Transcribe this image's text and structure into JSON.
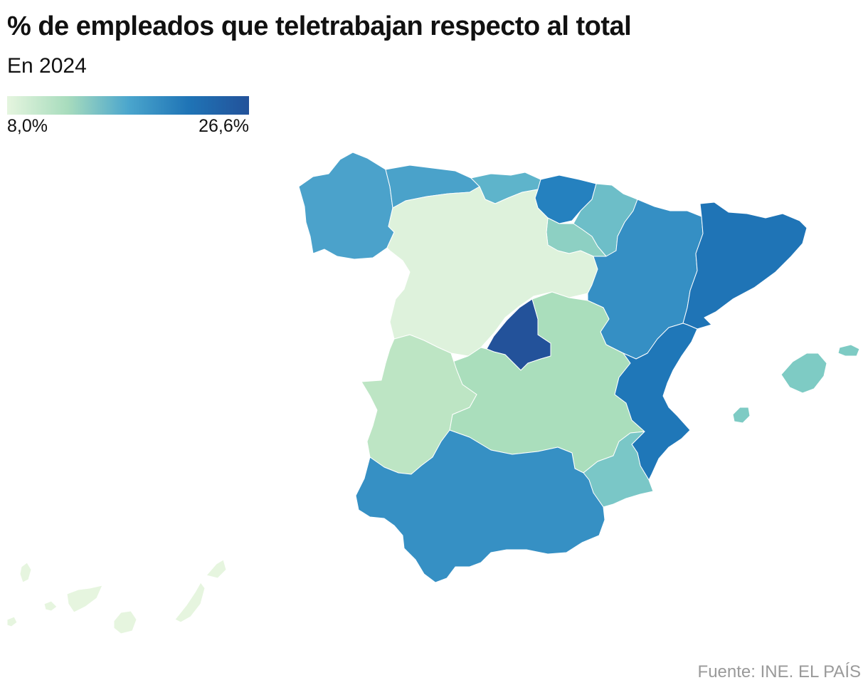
{
  "title": "% de empleados que teletrabajan respecto al total",
  "subtitle": "En 2024",
  "legend": {
    "min_label": "8,0%",
    "max_label": "26,6%",
    "min": 8.0,
    "max": 26.6,
    "colors": [
      "#e5f5df",
      "#a8dcbd",
      "#4ba6cd",
      "#1f74b6",
      "#23529a"
    ]
  },
  "source": "Fuente: INE. EL PAÍS",
  "regions": [
    {
      "key": "galicia",
      "fill": "#4ba2cb"
    },
    {
      "key": "asturias",
      "fill": "#4aa2ca"
    },
    {
      "key": "cantabria",
      "fill": "#5eb4cb"
    },
    {
      "key": "pais-vasco",
      "fill": "#2581bf"
    },
    {
      "key": "navarra",
      "fill": "#6dbec8"
    },
    {
      "key": "la-rioja",
      "fill": "#8dd0c3"
    },
    {
      "key": "castilla-y-leon",
      "fill": "#def2dc"
    },
    {
      "key": "aragon",
      "fill": "#358fc4"
    },
    {
      "key": "cataluna",
      "fill": "#1f74b6"
    },
    {
      "key": "madrid",
      "fill": "#23529a"
    },
    {
      "key": "castilla-la-mancha",
      "fill": "#aadebc"
    },
    {
      "key": "extremadura",
      "fill": "#bde5c4"
    },
    {
      "key": "comunidad-valenciana",
      "fill": "#1f77b8"
    },
    {
      "key": "murcia",
      "fill": "#7ac7c7"
    },
    {
      "key": "andalucia",
      "fill": "#3690c4"
    },
    {
      "key": "baleares",
      "fill": "#7ecbc4"
    },
    {
      "key": "canarias",
      "fill": "#e6f5df"
    }
  ]
}
